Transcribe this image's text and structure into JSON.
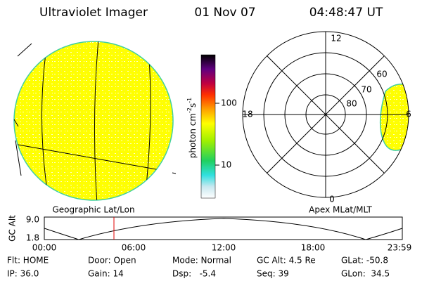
{
  "header": {
    "instrument": "Ultraviolet Imager",
    "date": "01 Nov 07",
    "time": "04:48:47 UT"
  },
  "colorbar": {
    "label_parts": [
      "photon cm",
      "-2",
      "s",
      "-1"
    ],
    "ticks": [
      "100",
      "10"
    ]
  },
  "polar": {
    "mlt_labels": [
      "12",
      "18",
      "6",
      "0"
    ],
    "mlat_labels": [
      "80",
      "70",
      "60"
    ]
  },
  "panel_titles": {
    "left": "Geographic Lat/Lon",
    "right": "Apex MLat/MLT"
  },
  "altitude_plot": {
    "ylabel": "GC Alt",
    "yticks": [
      "9.0",
      "1.8"
    ],
    "xticks": [
      "00:00",
      "06:00",
      "12:00",
      "18:00",
      "23:59"
    ]
  },
  "status": {
    "rows": [
      [
        "Flt: HOME",
        "Door: Open",
        "Mode: Normal",
        "GC Alt: 4.5 Re",
        "GLat: -50.8"
      ],
      [
        "IP: 36.0",
        "Gain: 14",
        "Dsp:   -5.4",
        "Seq: 39",
        "GLon:  34.5"
      ]
    ]
  }
}
